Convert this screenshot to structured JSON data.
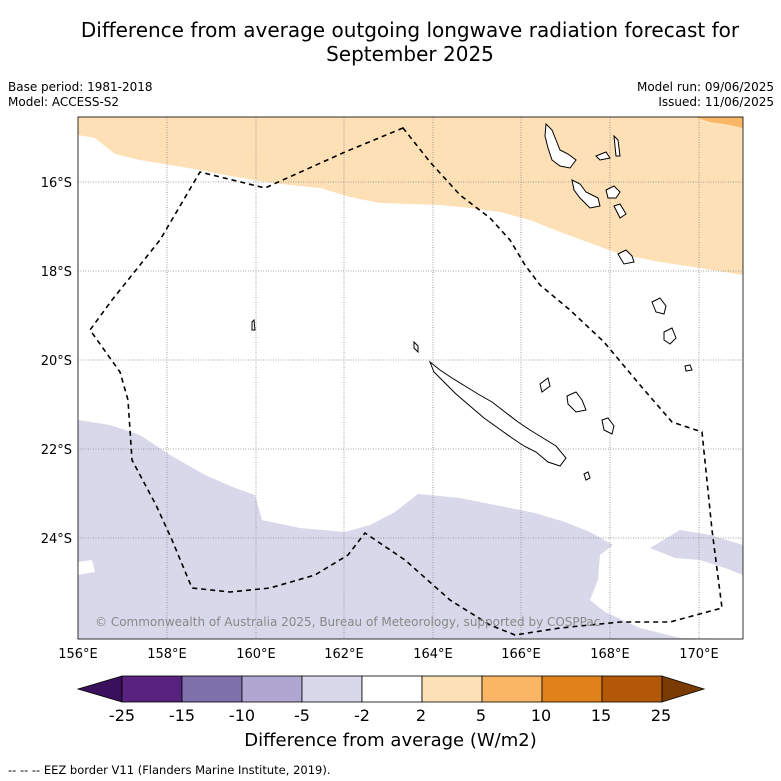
{
  "title": "Difference from average outgoing longwave radiation forecast for September 2025",
  "info_left": [
    "Base period: 1981-2018",
    "Model: ACCESS-S2"
  ],
  "info_right": [
    "Model run: 09/06/2025",
    "Issued: 11/06/2025"
  ],
  "lat_labels": [
    "16°S",
    "18°S",
    "20°S",
    "22°S",
    "24°S"
  ],
  "lon_labels": [
    "156°E",
    "158°E",
    "160°E",
    "162°E",
    "164°E",
    "166°E",
    "168°E",
    "170°E"
  ],
  "copyright": "© Commonwealth of Australia 2025, Bureau of Meteorology, supported by COSPPac",
  "colorbar": {
    "ticks": [
      "-25",
      "-15",
      "-10",
      "-5",
      "-2",
      "2",
      "5",
      "10",
      "15",
      "25"
    ],
    "colors": [
      "#3a0f5c",
      "#57237f",
      "#7e70ab",
      "#b0a7d1",
      "#d8d8ea",
      "#ffffff",
      "#fde0b5",
      "#f9b765",
      "#e08119",
      "#b35806",
      "#7a3b02"
    ],
    "label": "Difference from average (W/m2)"
  },
  "footnote": "--  --  -- EEZ border V11 (Flanders Marine Institute, 2019).",
  "fields": {
    "positive_color": "#fde0b5",
    "positive_strong_color": "#f9b765",
    "negative_color": "#d8d8ea"
  }
}
